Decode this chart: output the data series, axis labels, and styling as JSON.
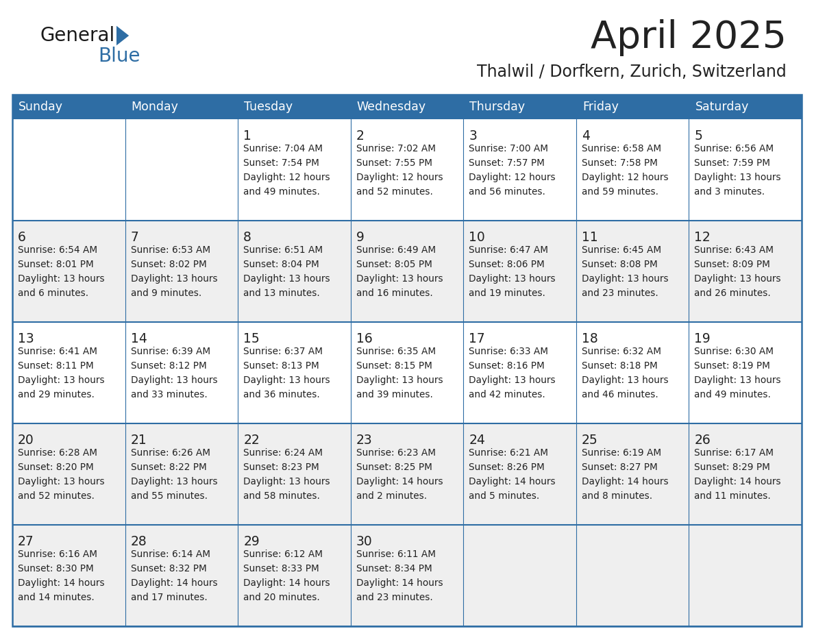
{
  "title": "April 2025",
  "subtitle": "Thalwil / Dorfkern, Zurich, Switzerland",
  "days_of_week": [
    "Sunday",
    "Monday",
    "Tuesday",
    "Wednesday",
    "Thursday",
    "Friday",
    "Saturday"
  ],
  "header_bg": "#2E6DA4",
  "header_text": "#FFFFFF",
  "row_bg_light": "#FFFFFF",
  "row_bg_gray": "#EFEFEF",
  "cell_border": "#2E6DA4",
  "day_num_color": "#222222",
  "text_color": "#222222",
  "title_color": "#222222",
  "logo_general_color": "#1a1a1a",
  "logo_blue_color": "#2E6DA4",
  "row_colors": [
    "#FFFFFF",
    "#EFEFEF",
    "#FFFFFF",
    "#EFEFEF",
    "#EFEFEF"
  ],
  "calendar_data": [
    [
      {
        "day": null,
        "info": ""
      },
      {
        "day": null,
        "info": ""
      },
      {
        "day": 1,
        "info": "Sunrise: 7:04 AM\nSunset: 7:54 PM\nDaylight: 12 hours\nand 49 minutes."
      },
      {
        "day": 2,
        "info": "Sunrise: 7:02 AM\nSunset: 7:55 PM\nDaylight: 12 hours\nand 52 minutes."
      },
      {
        "day": 3,
        "info": "Sunrise: 7:00 AM\nSunset: 7:57 PM\nDaylight: 12 hours\nand 56 minutes."
      },
      {
        "day": 4,
        "info": "Sunrise: 6:58 AM\nSunset: 7:58 PM\nDaylight: 12 hours\nand 59 minutes."
      },
      {
        "day": 5,
        "info": "Sunrise: 6:56 AM\nSunset: 7:59 PM\nDaylight: 13 hours\nand 3 minutes."
      }
    ],
    [
      {
        "day": 6,
        "info": "Sunrise: 6:54 AM\nSunset: 8:01 PM\nDaylight: 13 hours\nand 6 minutes."
      },
      {
        "day": 7,
        "info": "Sunrise: 6:53 AM\nSunset: 8:02 PM\nDaylight: 13 hours\nand 9 minutes."
      },
      {
        "day": 8,
        "info": "Sunrise: 6:51 AM\nSunset: 8:04 PM\nDaylight: 13 hours\nand 13 minutes."
      },
      {
        "day": 9,
        "info": "Sunrise: 6:49 AM\nSunset: 8:05 PM\nDaylight: 13 hours\nand 16 minutes."
      },
      {
        "day": 10,
        "info": "Sunrise: 6:47 AM\nSunset: 8:06 PM\nDaylight: 13 hours\nand 19 minutes."
      },
      {
        "day": 11,
        "info": "Sunrise: 6:45 AM\nSunset: 8:08 PM\nDaylight: 13 hours\nand 23 minutes."
      },
      {
        "day": 12,
        "info": "Sunrise: 6:43 AM\nSunset: 8:09 PM\nDaylight: 13 hours\nand 26 minutes."
      }
    ],
    [
      {
        "day": 13,
        "info": "Sunrise: 6:41 AM\nSunset: 8:11 PM\nDaylight: 13 hours\nand 29 minutes."
      },
      {
        "day": 14,
        "info": "Sunrise: 6:39 AM\nSunset: 8:12 PM\nDaylight: 13 hours\nand 33 minutes."
      },
      {
        "day": 15,
        "info": "Sunrise: 6:37 AM\nSunset: 8:13 PM\nDaylight: 13 hours\nand 36 minutes."
      },
      {
        "day": 16,
        "info": "Sunrise: 6:35 AM\nSunset: 8:15 PM\nDaylight: 13 hours\nand 39 minutes."
      },
      {
        "day": 17,
        "info": "Sunrise: 6:33 AM\nSunset: 8:16 PM\nDaylight: 13 hours\nand 42 minutes."
      },
      {
        "day": 18,
        "info": "Sunrise: 6:32 AM\nSunset: 8:18 PM\nDaylight: 13 hours\nand 46 minutes."
      },
      {
        "day": 19,
        "info": "Sunrise: 6:30 AM\nSunset: 8:19 PM\nDaylight: 13 hours\nand 49 minutes."
      }
    ],
    [
      {
        "day": 20,
        "info": "Sunrise: 6:28 AM\nSunset: 8:20 PM\nDaylight: 13 hours\nand 52 minutes."
      },
      {
        "day": 21,
        "info": "Sunrise: 6:26 AM\nSunset: 8:22 PM\nDaylight: 13 hours\nand 55 minutes."
      },
      {
        "day": 22,
        "info": "Sunrise: 6:24 AM\nSunset: 8:23 PM\nDaylight: 13 hours\nand 58 minutes."
      },
      {
        "day": 23,
        "info": "Sunrise: 6:23 AM\nSunset: 8:25 PM\nDaylight: 14 hours\nand 2 minutes."
      },
      {
        "day": 24,
        "info": "Sunrise: 6:21 AM\nSunset: 8:26 PM\nDaylight: 14 hours\nand 5 minutes."
      },
      {
        "day": 25,
        "info": "Sunrise: 6:19 AM\nSunset: 8:27 PM\nDaylight: 14 hours\nand 8 minutes."
      },
      {
        "day": 26,
        "info": "Sunrise: 6:17 AM\nSunset: 8:29 PM\nDaylight: 14 hours\nand 11 minutes."
      }
    ],
    [
      {
        "day": 27,
        "info": "Sunrise: 6:16 AM\nSunset: 8:30 PM\nDaylight: 14 hours\nand 14 minutes."
      },
      {
        "day": 28,
        "info": "Sunrise: 6:14 AM\nSunset: 8:32 PM\nDaylight: 14 hours\nand 17 minutes."
      },
      {
        "day": 29,
        "info": "Sunrise: 6:12 AM\nSunset: 8:33 PM\nDaylight: 14 hours\nand 20 minutes."
      },
      {
        "day": 30,
        "info": "Sunrise: 6:11 AM\nSunset: 8:34 PM\nDaylight: 14 hours\nand 23 minutes."
      },
      {
        "day": null,
        "info": ""
      },
      {
        "day": null,
        "info": ""
      },
      {
        "day": null,
        "info": ""
      }
    ]
  ]
}
